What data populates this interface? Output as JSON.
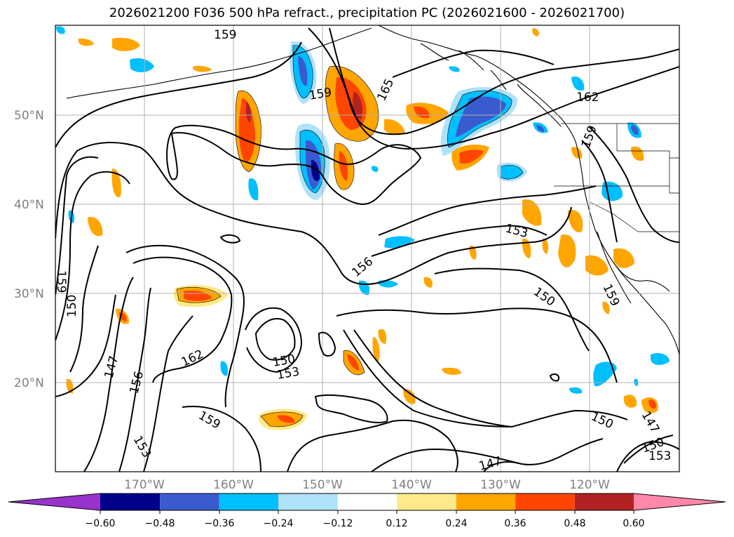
{
  "title": "2026021200 F036 500 hPa refract., precipitation PC (2026021600 - 2026021700)",
  "map": {
    "lat_labels": [
      "50°N",
      "40°N",
      "30°N",
      "20°N"
    ],
    "lon_labels": [
      "170°W",
      "160°W",
      "150°W",
      "140°W",
      "130°W",
      "120°W"
    ],
    "contour_levels": [
      "159",
      "159",
      "165",
      "162",
      "159",
      "153",
      "156",
      "150",
      "159",
      "150",
      "162",
      "147",
      "156",
      "153",
      "150",
      "153",
      "159",
      "150",
      "147",
      "150",
      "153",
      "147",
      "159"
    ]
  },
  "colorbar": {
    "ticks": [
      "−0.60",
      "−0.48",
      "−0.36",
      "−0.24",
      "−0.12",
      "0.12",
      "0.24",
      "0.36",
      "0.48",
      "0.60"
    ],
    "colors": [
      "#9932cc",
      "#00008b",
      "#3a5bd0",
      "#00bfff",
      "#aee2fa",
      "#ffffff",
      "#ffe98a",
      "#ffa500",
      "#ff4500",
      "#b22222",
      "#ff88aa"
    ]
  },
  "colors": {
    "frame": "#000000",
    "grid": "#b0b0b0",
    "labels": "#808080"
  }
}
